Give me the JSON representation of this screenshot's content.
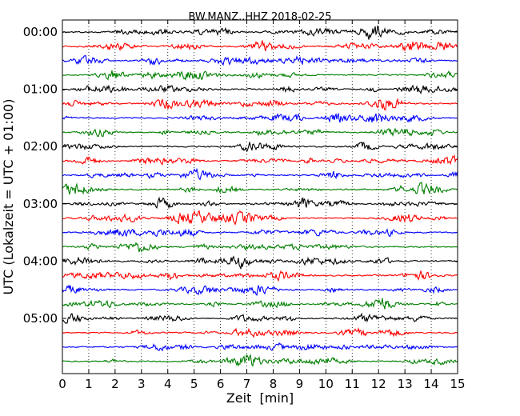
{
  "chart_data": {
    "type": "line",
    "subtype": "seismic-helicorder",
    "title": "BW.MANZ..HHZ 2018-02-25",
    "xlabel": "Zeit  [min]",
    "ylabel": "UTC (Lokalzeit = UTC + 01:00)",
    "xlim": [
      0,
      15
    ],
    "x_ticks": [
      "0",
      "1",
      "2",
      "3",
      "4",
      "5",
      "6",
      "7",
      "8",
      "9",
      "10",
      "11",
      "12",
      "13",
      "14",
      "15"
    ],
    "y_ticks": [
      "00:00",
      "01:00",
      "02:00",
      "03:00",
      "04:00",
      "05:00"
    ],
    "minutes_per_line": 15,
    "row_count": 24,
    "row_colors": [
      "#000000",
      "#ff0000",
      "#0000ff",
      "#007f00"
    ],
    "grid": "vertical dotted at each minute",
    "legend": "none"
  }
}
